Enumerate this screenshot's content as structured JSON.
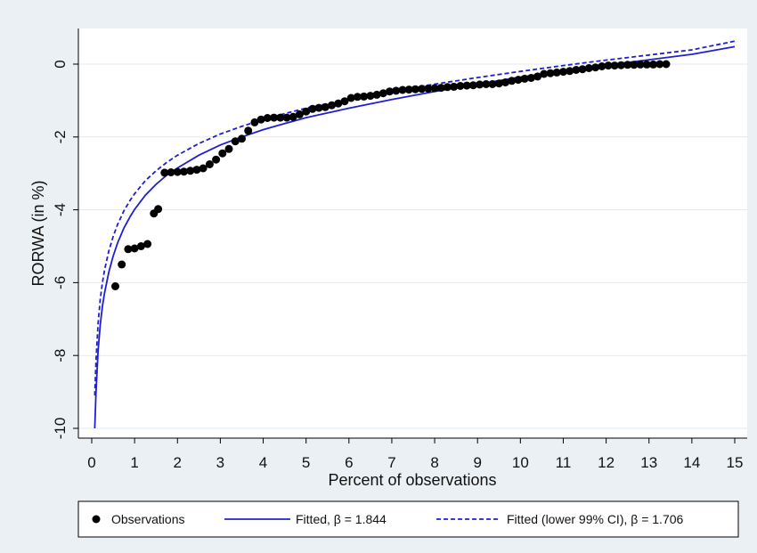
{
  "chart_data": {
    "type": "scatter",
    "xlabel": "Percent of observations",
    "ylabel": "RORWA (in %)",
    "xlim": [
      0,
      15
    ],
    "ylim": [
      -10,
      0
    ],
    "xticks": [
      "0",
      "1",
      "2",
      "3",
      "4",
      "5",
      "6",
      "7",
      "8",
      "9",
      "10",
      "11",
      "12",
      "13",
      "14",
      "15"
    ],
    "yticks": [
      "0",
      "-2",
      "-4",
      "-6",
      "-8",
      "-10"
    ],
    "grid": "horizontal",
    "legend_position": "bottom",
    "series": [
      {
        "name": "Observations",
        "kind": "points",
        "color": "#000000",
        "points": [
          [
            0.55,
            -6.1
          ],
          [
            0.7,
            -5.5
          ],
          [
            0.85,
            -5.08
          ],
          [
            1.0,
            -5.06
          ],
          [
            1.15,
            -5.0
          ],
          [
            1.3,
            -4.94
          ],
          [
            1.45,
            -4.1
          ],
          [
            1.55,
            -3.98
          ],
          [
            1.7,
            -2.98
          ],
          [
            1.85,
            -2.97
          ],
          [
            2.0,
            -2.96
          ],
          [
            2.15,
            -2.95
          ],
          [
            2.3,
            -2.93
          ],
          [
            2.45,
            -2.9
          ],
          [
            2.6,
            -2.86
          ],
          [
            2.75,
            -2.75
          ],
          [
            2.9,
            -2.62
          ],
          [
            3.05,
            -2.45
          ],
          [
            3.2,
            -2.33
          ],
          [
            3.35,
            -2.12
          ],
          [
            3.5,
            -2.05
          ],
          [
            3.65,
            -1.83
          ],
          [
            3.8,
            -1.6
          ],
          [
            3.95,
            -1.52
          ],
          [
            4.1,
            -1.48
          ],
          [
            4.25,
            -1.47
          ],
          [
            4.4,
            -1.47
          ],
          [
            4.55,
            -1.47
          ],
          [
            4.7,
            -1.45
          ],
          [
            4.85,
            -1.38
          ],
          [
            5.0,
            -1.3
          ],
          [
            5.15,
            -1.23
          ],
          [
            5.3,
            -1.2
          ],
          [
            5.45,
            -1.18
          ],
          [
            5.6,
            -1.13
          ],
          [
            5.75,
            -1.08
          ],
          [
            5.9,
            -1.02
          ],
          [
            6.05,
            -0.93
          ],
          [
            6.2,
            -0.9
          ],
          [
            6.35,
            -0.89
          ],
          [
            6.5,
            -0.87
          ],
          [
            6.65,
            -0.84
          ],
          [
            6.8,
            -0.8
          ],
          [
            6.95,
            -0.75
          ],
          [
            7.1,
            -0.73
          ],
          [
            7.25,
            -0.71
          ],
          [
            7.4,
            -0.7
          ],
          [
            7.55,
            -0.69
          ],
          [
            7.7,
            -0.68
          ],
          [
            7.85,
            -0.67
          ],
          [
            8.0,
            -0.66
          ],
          [
            8.15,
            -0.65
          ],
          [
            8.3,
            -0.63
          ],
          [
            8.45,
            -0.62
          ],
          [
            8.6,
            -0.6
          ],
          [
            8.75,
            -0.59
          ],
          [
            8.9,
            -0.58
          ],
          [
            9.05,
            -0.56
          ],
          [
            9.2,
            -0.55
          ],
          [
            9.35,
            -0.55
          ],
          [
            9.5,
            -0.53
          ],
          [
            9.65,
            -0.5
          ],
          [
            9.8,
            -0.46
          ],
          [
            9.95,
            -0.43
          ],
          [
            10.1,
            -0.4
          ],
          [
            10.25,
            -0.38
          ],
          [
            10.4,
            -0.34
          ],
          [
            10.55,
            -0.27
          ],
          [
            10.7,
            -0.25
          ],
          [
            10.85,
            -0.23
          ],
          [
            11.0,
            -0.21
          ],
          [
            11.15,
            -0.19
          ],
          [
            11.3,
            -0.16
          ],
          [
            11.45,
            -0.14
          ],
          [
            11.6,
            -0.11
          ],
          [
            11.75,
            -0.09
          ],
          [
            11.9,
            -0.06
          ],
          [
            12.05,
            -0.04
          ],
          [
            12.2,
            -0.04
          ],
          [
            12.35,
            -0.03
          ],
          [
            12.5,
            -0.02
          ],
          [
            12.65,
            -0.02
          ],
          [
            12.8,
            -0.01
          ],
          [
            12.95,
            -0.01
          ],
          [
            13.1,
            -0.01
          ],
          [
            13.25,
            0.0
          ],
          [
            13.4,
            0.0
          ]
        ]
      },
      {
        "name": "Fitted, β = 1.844",
        "kind": "line",
        "style": "solid",
        "color": "#1f1fd2",
        "x": [
          0.07,
          0.1,
          0.15,
          0.2,
          0.25,
          0.3,
          0.4,
          0.5,
          0.6,
          0.75,
          0.9,
          1,
          1.25,
          1.5,
          1.75,
          2,
          2.5,
          3,
          3.5,
          4,
          4.5,
          5,
          6,
          7,
          8,
          9,
          10,
          11,
          12,
          13,
          14,
          15
        ],
        "y": [
          -10.0,
          -9.0,
          -7.85,
          -7.15,
          -6.65,
          -6.28,
          -5.7,
          -5.27,
          -4.92,
          -4.5,
          -4.18,
          -3.99,
          -3.6,
          -3.3,
          -3.05,
          -2.85,
          -2.5,
          -2.22,
          -2.0,
          -1.8,
          -1.63,
          -1.47,
          -1.21,
          -0.97,
          -0.75,
          -0.55,
          -0.36,
          -0.19,
          -0.03,
          0.12,
          0.27,
          0.48
        ]
      },
      {
        "name": "Fitted (lower 99% CI), β = 1.706",
        "kind": "line",
        "style": "dashed",
        "color": "#1f1fd2",
        "x": [
          0.07,
          0.1,
          0.15,
          0.2,
          0.25,
          0.3,
          0.4,
          0.5,
          0.6,
          0.75,
          0.9,
          1,
          1.25,
          1.5,
          1.75,
          2,
          2.5,
          3,
          3.5,
          4,
          4.5,
          5,
          6,
          7,
          8,
          9,
          10,
          11,
          12,
          13,
          14,
          15
        ],
        "y": [
          -9.1,
          -8.15,
          -7.1,
          -6.45,
          -6.0,
          -5.65,
          -5.12,
          -4.73,
          -4.41,
          -4.03,
          -3.73,
          -3.56,
          -3.2,
          -2.93,
          -2.7,
          -2.5,
          -2.18,
          -1.92,
          -1.71,
          -1.52,
          -1.36,
          -1.21,
          -0.96,
          -0.74,
          -0.55,
          -0.37,
          -0.2,
          -0.04,
          0.11,
          0.25,
          0.39,
          0.63
        ]
      }
    ]
  }
}
